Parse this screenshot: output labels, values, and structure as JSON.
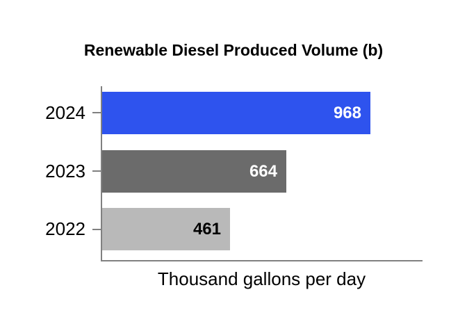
{
  "chart_data": {
    "type": "bar",
    "orientation": "horizontal",
    "title": "Renewable Diesel Produced Volume (b)",
    "categories": [
      "2024",
      "2023",
      "2022"
    ],
    "values": [
      968,
      664,
      461
    ],
    "xlabel": "Thousand gallons per day",
    "ylabel": "",
    "xlim": [
      0,
      1156
    ],
    "grid": false,
    "legend": false,
    "value_labels_position": "inside-end",
    "bar_colors": [
      "#2E53EE",
      "#6B6B6B",
      "#B9B9B9"
    ],
    "value_label_colors": [
      "#FFFFFF",
      "#FFFFFF",
      "#000000"
    ],
    "axis_color": "#808080",
    "background_color": "#FFFFFF",
    "title_color": "#000000"
  }
}
